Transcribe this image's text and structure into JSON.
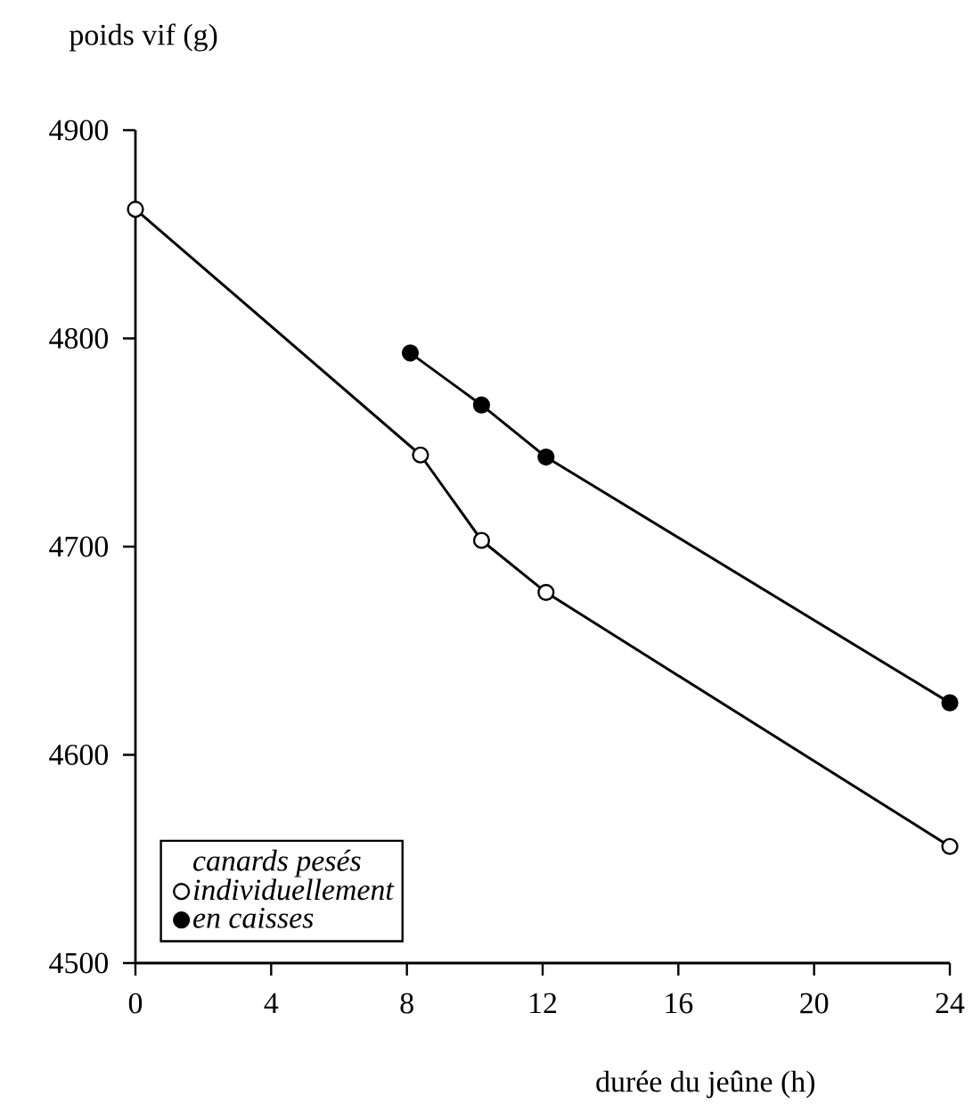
{
  "chart_data": {
    "type": "line",
    "xlabel": "durée du jeûne (h)",
    "ylabel": "poids vif (g)",
    "legend_title": "canards pesés",
    "series": [
      {
        "name": "individuellement",
        "color": "#000000",
        "x": [
          0,
          8.4,
          10.2,
          12.1,
          24
        ],
        "values": [
          4862,
          4744,
          4703,
          4678,
          4556
        ]
      },
      {
        "name": "en caisses",
        "color": "#000000",
        "x": [
          8.1,
          10.2,
          12.1,
          24
        ],
        "values": [
          4793,
          4768,
          4743,
          4625
        ]
      }
    ],
    "xlim": [
      0,
      24
    ],
    "xticks": [
      0,
      4,
      8,
      12,
      16,
      20,
      24
    ],
    "ylim": [
      4500,
      4900
    ],
    "yticks": [
      4500,
      4600,
      4700,
      4800,
      4900
    ],
    "marker": "circle",
    "line_style": "solid",
    "legend": "bottom left",
    "grid": false
  }
}
